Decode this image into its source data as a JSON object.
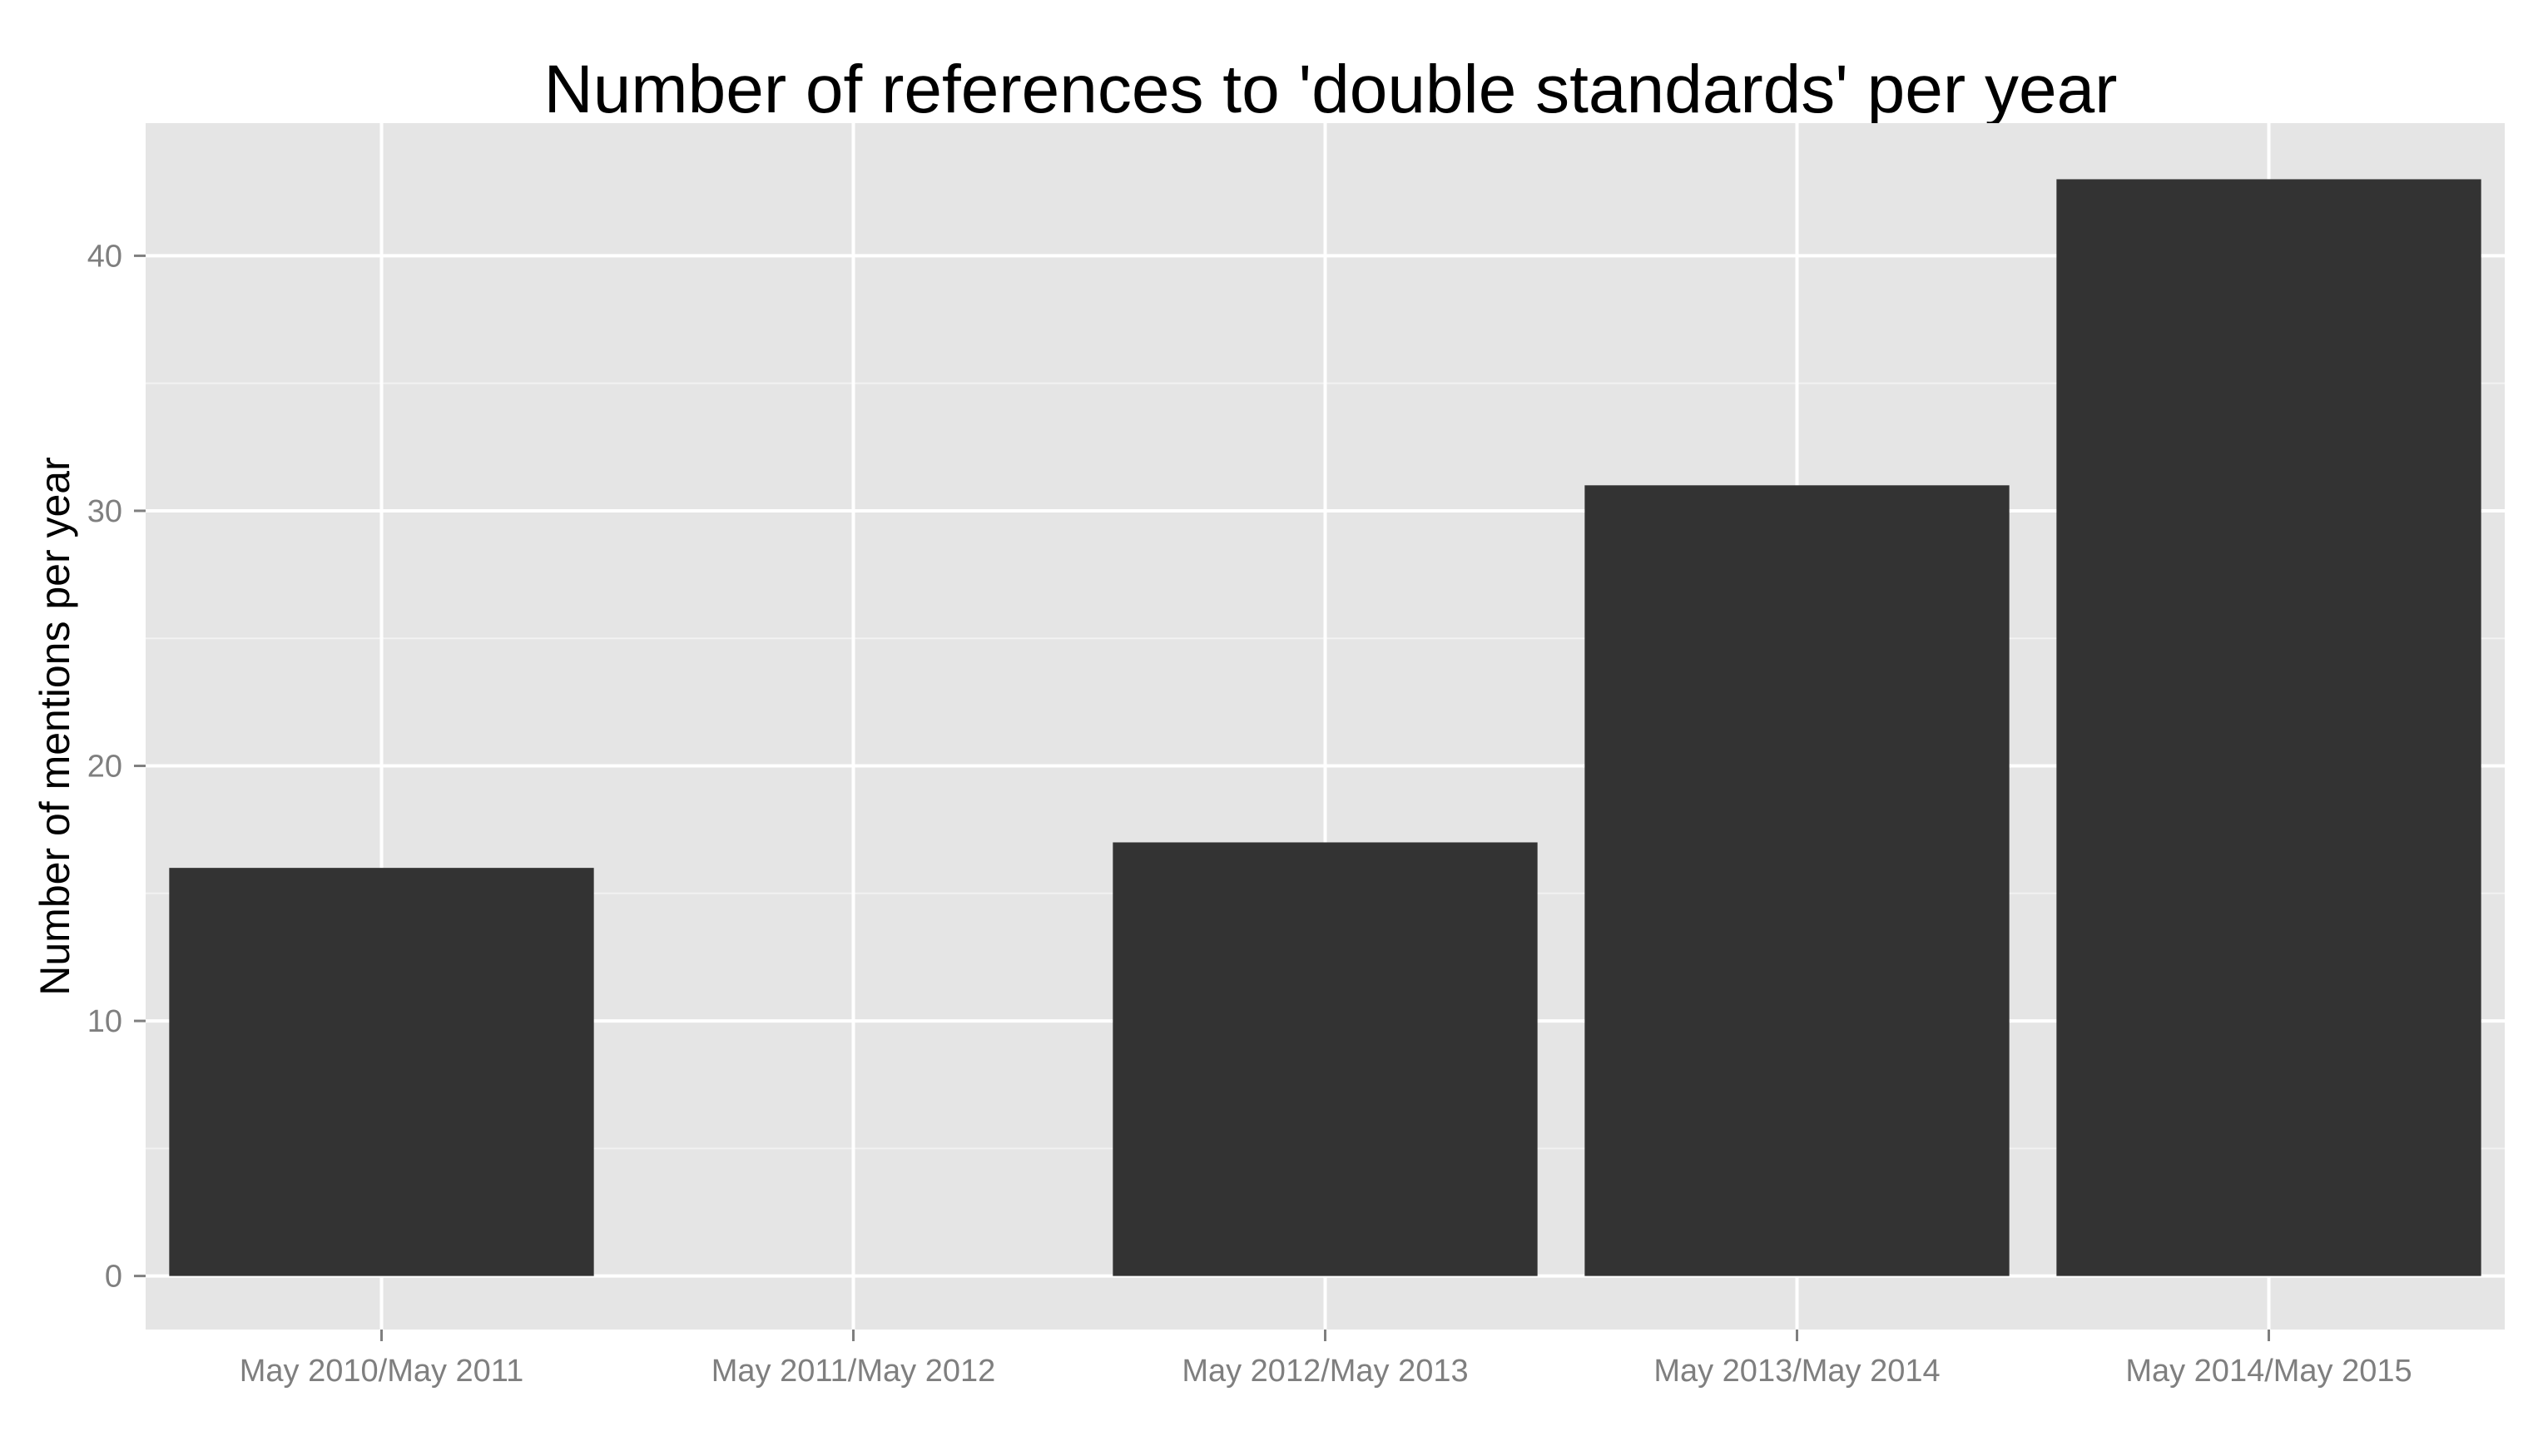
{
  "chart_data": {
    "type": "bar",
    "title": "Number of references to 'double standards' per year",
    "xlabel": "",
    "ylabel": "Number of mentions per year",
    "categories": [
      "May 2010/May 2011",
      "May 2011/May 2012",
      "May 2012/May 2013",
      "May 2013/May 2014",
      "May 2014/May 2015"
    ],
    "values": [
      16,
      0,
      17,
      31,
      43
    ],
    "ylim": [
      -2.1,
      45.2
    ],
    "yticks": [
      0,
      10,
      20,
      30,
      40
    ],
    "grid": true,
    "legend": "none",
    "colors": {
      "bar": "#333333",
      "panel_background": "#e5e5e5",
      "grid_major": "#ffffff",
      "grid_minor": "#f2f2f2",
      "tick_label": "#7f7f7f"
    }
  }
}
